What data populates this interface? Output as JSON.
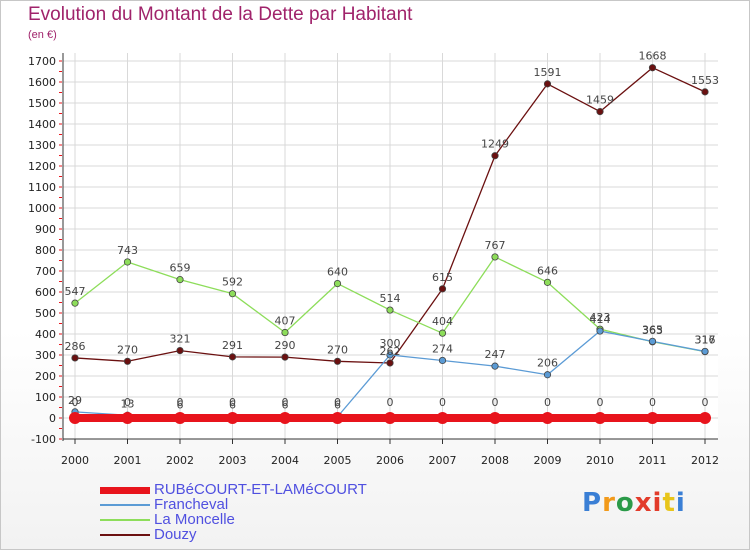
{
  "title": "Evolution du Montant de la Dette par Habitant",
  "subtitle": "(en €)",
  "logo": {
    "text": "Proxiti",
    "colors": [
      "#3a7fd5",
      "#f29a1a",
      "#2a9a48",
      "#e23b2a",
      "#e23b2a",
      "#e8c51a",
      "#3a7fd5"
    ]
  },
  "chart_data": {
    "type": "line",
    "x": [
      "2000",
      "2001",
      "2002",
      "2003",
      "2004",
      "2005",
      "2006",
      "2007",
      "2008",
      "2009",
      "2010",
      "2011",
      "2012"
    ],
    "ylim": [
      -100,
      1700
    ],
    "yticks": [
      -100,
      0,
      100,
      200,
      300,
      400,
      500,
      600,
      700,
      800,
      900,
      1000,
      1100,
      1200,
      1300,
      1400,
      1500,
      1600,
      1700
    ],
    "grid": true,
    "legend_position": "bottom-left",
    "series": [
      {
        "name": "RUBéCOURT-ET-LAMéCOURT",
        "color": "#e8141c",
        "values": [
          0,
          0,
          0,
          0,
          0,
          0,
          0,
          0,
          0,
          0,
          0,
          0,
          0
        ],
        "labels": [
          "0",
          "0",
          "0",
          "0",
          "0",
          "0",
          "0",
          "0",
          "0",
          "0",
          "0",
          "0",
          "0"
        ]
      },
      {
        "name": "Francheval",
        "color": "#5b9bd5",
        "values": [
          29,
          13,
          6,
          6,
          6,
          6,
          300,
          274,
          247,
          206,
          414,
          365,
          317
        ],
        "labels": [
          "29",
          "13",
          "6",
          "6",
          "6",
          "6",
          "300",
          "274",
          "247",
          "206",
          "414",
          "365",
          "317"
        ]
      },
      {
        "name": "La Moncelle",
        "color": "#8ddd5a",
        "values": [
          547,
          743,
          659,
          592,
          407,
          640,
          514,
          404,
          767,
          646,
          423,
          363,
          316
        ],
        "labels": [
          "547",
          "743",
          "659",
          "592",
          "407",
          "640",
          "514",
          "404",
          "767",
          "646",
          "423",
          "363",
          "316"
        ]
      },
      {
        "name": "Douzy",
        "color": "#6b1010",
        "values": [
          286,
          270,
          321,
          291,
          290,
          270,
          262,
          615,
          1249,
          1591,
          1459,
          1668,
          1553
        ],
        "labels": [
          "286",
          "270",
          "321",
          "291",
          "290",
          "270",
          "262",
          "615",
          "1249",
          "1591",
          "1459",
          "1668",
          "1553"
        ]
      }
    ]
  }
}
